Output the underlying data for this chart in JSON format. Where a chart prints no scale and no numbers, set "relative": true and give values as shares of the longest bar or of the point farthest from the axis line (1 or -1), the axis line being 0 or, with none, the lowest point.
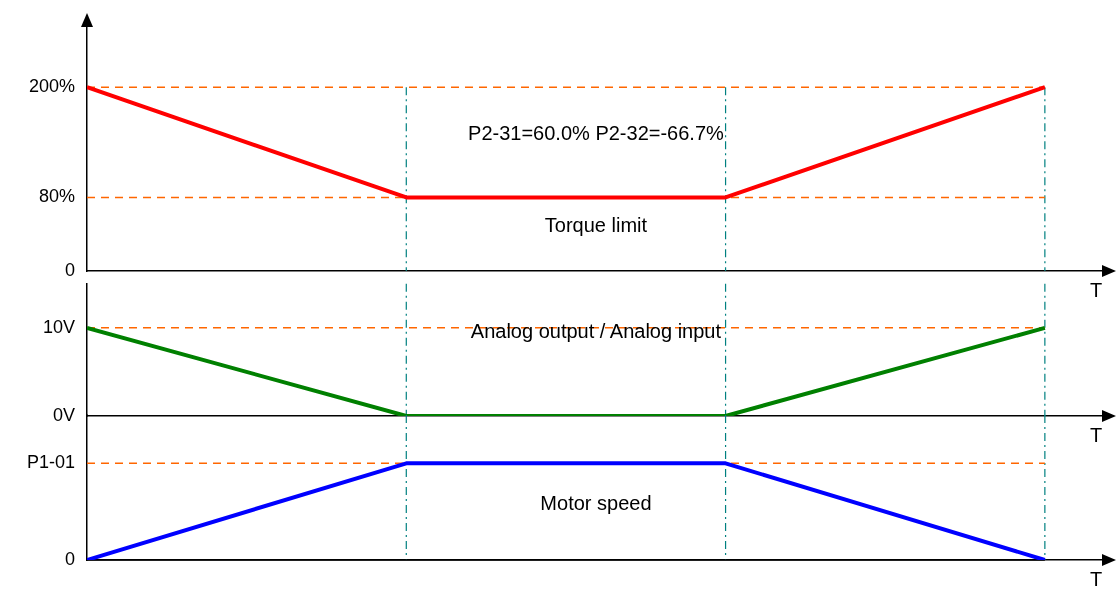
{
  "chart_data": [
    {
      "type": "line",
      "categories": [
        null,
        null,
        null,
        null
      ],
      "ylim": [
        0,
        270
      ],
      "yticks": [
        0,
        {
          "value": 80,
          "label": "80%"
        },
        {
          "value": 200,
          "label": "200%"
        }
      ],
      "tick_labels": "y",
      "xlabel": "T",
      "series": [
        {
          "color": "#ff0000",
          "values": [
            200,
            80,
            80,
            200
          ]
        }
      ],
      "ref_lines": [
        {
          "axis": "y",
          "value": 200,
          "color": "#ff6600",
          "line_style": "dashed"
        },
        {
          "axis": "y",
          "value": 80,
          "color": "#ff6600",
          "line_style": "dashed"
        }
      ],
      "annotations": [
        "P2-31=60.0% P2-32=-66.7%",
        "Torque limit"
      ]
    },
    {
      "type": "line",
      "categories": [
        null,
        null,
        null,
        null
      ],
      "ylim": [
        0,
        15
      ],
      "yticks": [
        {
          "value": 0,
          "label": "0V"
        },
        {
          "value": 10,
          "label": "10V"
        }
      ],
      "tick_labels": "y",
      "xlabel": "T",
      "grid": "x",
      "series": [
        {
          "color": "#008000",
          "values": [
            10,
            0,
            0,
            10
          ]
        }
      ],
      "ref_lines": [
        {
          "axis": "y",
          "value": 10,
          "color": "#ff6600",
          "line_style": "dashed"
        }
      ],
      "annotations": [
        "Analog output / Analog input"
      ]
    },
    {
      "type": "line",
      "categories": [
        null,
        null,
        null,
        null
      ],
      "relative": true,
      "tick_labels": false,
      "xlabel": "T",
      "grid": "x",
      "series": [
        {
          "color": "#0000ff",
          "values": [
            0,
            1,
            1,
            0
          ]
        }
      ],
      "ref_lines": [
        {
          "axis": "y",
          "value": 1,
          "label": "P1-01",
          "color": "#ff6600",
          "line_style": "dashed"
        },
        {
          "axis": "y",
          "value": 0,
          "label": "0",
          "color": "#000000",
          "line_style": "solid"
        }
      ],
      "annotations": [
        "Motor speed"
      ]
    }
  ]
}
